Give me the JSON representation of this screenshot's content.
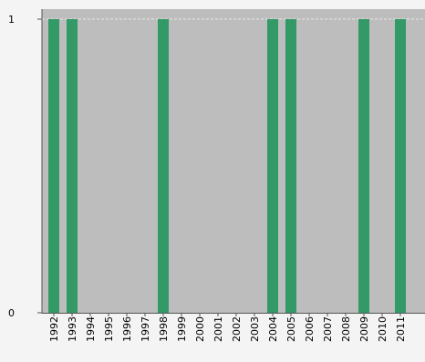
{
  "chart_data": {
    "type": "bar",
    "categories": [
      "1992",
      "1993",
      "1994",
      "1995",
      "1996",
      "1997",
      "1998",
      "1999",
      "2000",
      "2001",
      "2002",
      "2003",
      "2004",
      "2005",
      "2006",
      "2007",
      "2008",
      "2009",
      "2010",
      "2011"
    ],
    "values": [
      1,
      1,
      0,
      0,
      0,
      0,
      1,
      0,
      0,
      0,
      0,
      0,
      1,
      1,
      0,
      0,
      0,
      1,
      0,
      1
    ],
    "ylim": [
      0,
      1
    ],
    "yticks": [
      "0",
      "1"
    ],
    "grid": true,
    "title": "",
    "xlabel": "",
    "ylabel": ""
  },
  "colors": {
    "plot_background": "#bdbdbd",
    "bar": "#339966",
    "page_background": "#f4f4f4",
    "gridline": "#e8e8e8"
  }
}
